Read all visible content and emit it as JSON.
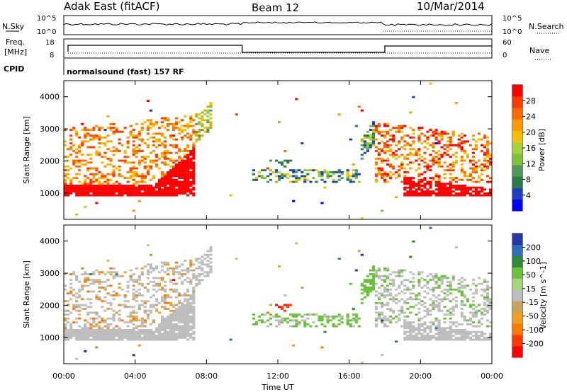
{
  "header": {
    "station": "Adak East (fitACF)",
    "beam": "Beam 12",
    "date": "10/Mar/2014"
  },
  "aux_labels": {
    "nsky": "N.Sky",
    "nsearch": "N.Search",
    "freq_line1": "Freq.",
    "freq_line2": "[MHz]",
    "nave": "Nave",
    "cpid": "CPID",
    "cpid_value": "normalsound (fast) 157 RF",
    "noise_ticks": [
      "10^5",
      "10^0"
    ],
    "freq_ticks": [
      "18",
      "8"
    ],
    "nave_ticks": [
      "60",
      "0"
    ]
  },
  "colors": {
    "power": [
      "#0000ff",
      "#1e3fbf",
      "#2e7a46",
      "#4f9a5a",
      "#7fc23a",
      "#a7d13a",
      "#f5c000",
      "#ff9a00",
      "#ff6a00",
      "#ff3c00",
      "#ff0000"
    ],
    "velocity": [
      "#2636a8",
      "#2a6fb8",
      "#2f8a3a",
      "#6ac23a",
      "#a8d47a",
      "#bdbdbd",
      "#c9a35c",
      "#f0a020",
      "#ff7a00",
      "#ff3a00",
      "#ff0000"
    ]
  },
  "chart_data": [
    {
      "type": "heatmap",
      "title": "Power",
      "xlabel": "Time UT",
      "ylabel": "Slant Range [km]",
      "xlim": [
        "00:00",
        "24:00"
      ],
      "ylim": [
        180,
        4500
      ],
      "x_ticks": [
        "00:00",
        "04:00",
        "08:00",
        "12:00",
        "16:00",
        "20:00",
        "00:00"
      ],
      "y_ticks": [
        1000,
        2000,
        3000,
        4000
      ],
      "colorbar": {
        "label": "Power [dB]",
        "min": 0,
        "max": 32,
        "ticks": [
          4,
          8,
          12,
          16,
          20,
          24,
          28
        ]
      }
    },
    {
      "type": "heatmap",
      "title": "Velocity",
      "xlabel": "Time UT",
      "ylabel": "Slant Range [km]",
      "xlim": [
        "00:00",
        "24:00"
      ],
      "ylim": [
        180,
        4500
      ],
      "x_ticks": [
        "00:00",
        "04:00",
        "08:00",
        "12:00",
        "16:00",
        "20:00",
        "00:00"
      ],
      "y_ticks": [
        1000,
        2000,
        3000,
        4000
      ],
      "colorbar": {
        "label": "Velocity [m s^-1]",
        "ticks": [
          200,
          100,
          50,
          15,
          -15,
          -50,
          -100,
          -200
        ]
      }
    }
  ]
}
